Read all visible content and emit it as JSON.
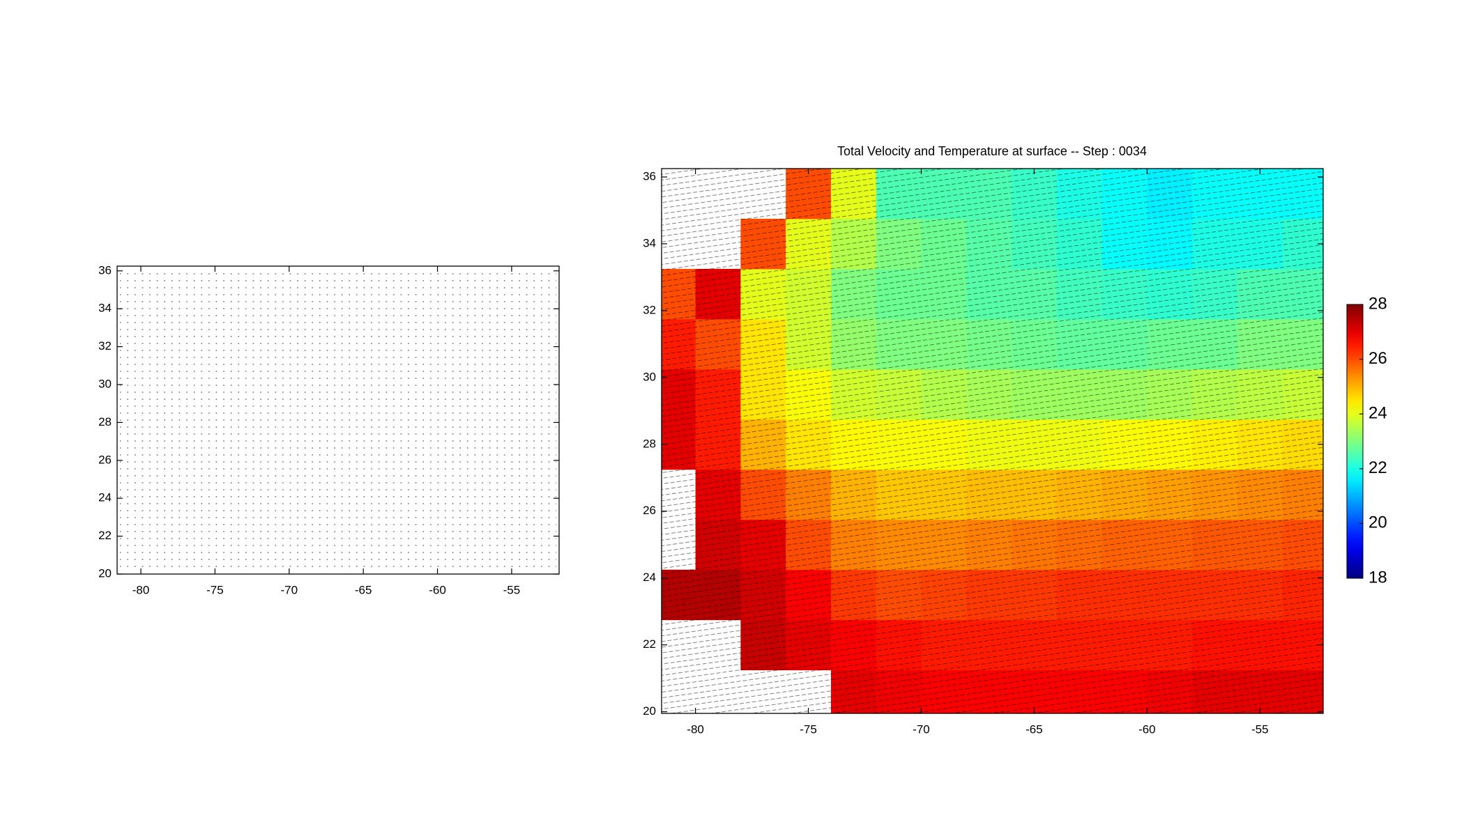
{
  "chart_data": [
    {
      "type": "quiver",
      "xlim": [
        -81.6,
        -51.8
      ],
      "ylim": [
        20,
        36.25
      ],
      "xticks": [
        -80,
        -75,
        -70,
        -65,
        -60,
        -55
      ],
      "yticks": [
        20,
        22,
        24,
        26,
        28,
        30,
        32,
        34,
        36
      ]
    },
    {
      "type": "heatmap",
      "title": "Total Velocity and Temperature at surface -- Step : 0034",
      "xlim": [
        -81.5,
        -52.2
      ],
      "ylim": [
        19.95,
        36.25
      ],
      "xticks": [
        -80,
        -75,
        -70,
        -65,
        -60,
        -55
      ],
      "yticks": [
        20,
        22,
        24,
        26,
        28,
        30,
        32,
        34,
        36
      ],
      "colormap": "jet",
      "clim": [
        18,
        28
      ],
      "colorbar_ticks": [
        18,
        20,
        22,
        24,
        26,
        28
      ],
      "x": [
        -81,
        -79,
        -77,
        -75,
        -73,
        -71,
        -69,
        -67,
        -65,
        -63,
        -61,
        -59,
        -57,
        -55,
        -53
      ],
      "y": [
        20.5,
        22,
        23.5,
        25,
        26.5,
        28,
        29.5,
        31,
        32.5,
        34,
        35.5
      ],
      "z": [
        [
          null,
          null,
          null,
          null,
          27,
          26.9,
          26.8,
          26.8,
          26.8,
          26.8,
          26.8,
          26.9,
          27,
          27,
          27
        ],
        [
          null,
          null,
          27.3,
          27,
          26.8,
          26.6,
          26.5,
          26.5,
          26.5,
          26.5,
          26.5,
          26.5,
          26.6,
          26.6,
          26.6
        ],
        [
          27.5,
          27.5,
          27.2,
          26.8,
          26.2,
          26,
          26.1,
          26.2,
          26.2,
          26.3,
          26.3,
          26.3,
          26.3,
          26.3,
          26.4
        ],
        [
          null,
          27.2,
          27,
          26,
          25.5,
          25.4,
          25.4,
          25.5,
          25.6,
          25.7,
          25.8,
          25.8,
          25.9,
          25.9,
          26
        ],
        [
          null,
          27,
          26,
          25.5,
          25,
          24.8,
          24.8,
          24.9,
          24.9,
          25,
          25.1,
          25.2,
          25.3,
          25.4,
          25.5
        ],
        [
          27,
          26.5,
          25,
          24.5,
          24.3,
          24.2,
          24.2,
          24.1,
          24.1,
          24.1,
          24.2,
          24.3,
          24.4,
          24.5,
          24.6
        ],
        [
          27,
          26.5,
          24.5,
          24.2,
          23.8,
          23.7,
          23.5,
          23.4,
          23.3,
          23.3,
          23.3,
          23.4,
          23.5,
          23.6,
          23.7
        ],
        [
          26.5,
          26,
          24.5,
          23.8,
          23.2,
          23,
          23,
          22.9,
          22.8,
          22.7,
          22.7,
          22.8,
          22.8,
          23,
          23
        ],
        [
          26,
          27,
          24,
          23.8,
          23,
          22.8,
          22.8,
          22.6,
          22.6,
          22.4,
          22.3,
          22.2,
          22.3,
          22.5,
          22.5
        ],
        [
          null,
          null,
          26,
          24,
          23.5,
          23,
          22.8,
          22.6,
          22.4,
          22.2,
          21.8,
          21.7,
          22,
          22,
          22.2
        ],
        [
          null,
          null,
          null,
          26,
          24,
          22.5,
          22.5,
          22.5,
          22.3,
          22,
          21.8,
          21.6,
          21.8,
          21.8,
          21.8
        ]
      ]
    }
  ]
}
